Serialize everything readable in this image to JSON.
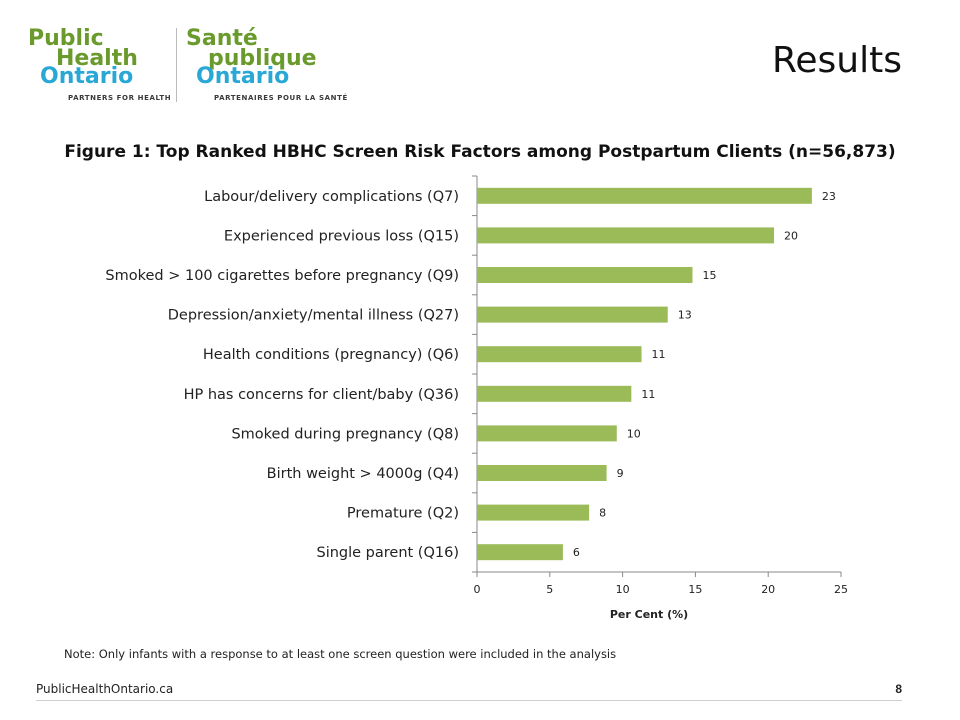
{
  "logo": {
    "en_line1": "Public",
    "en_line2": "Health",
    "en_line3": "Ontario",
    "en_tagline": "PARTNERS FOR HEALTH",
    "fr_line1": "Santé",
    "fr_line2": "publique",
    "fr_line3": "Ontario",
    "fr_tagline": "PARTENAIRES POUR LA SANTÉ",
    "green": "#6a9a2c",
    "blue": "#29a8d6"
  },
  "slide_title": "Results",
  "footer": {
    "site": "PublicHealthOntario.ca",
    "page": "8"
  },
  "note": "Note:  Only infants with a response to at least one screen question were included in the analysis",
  "chart_data": {
    "type": "bar",
    "orientation": "horizontal",
    "title": "Figure  1: Top Ranked HBHC Screen Risk Factors among Postpartum  Clients (n=56,873)",
    "xlabel": "Per Cent (%)",
    "ylabel": "",
    "categories": [
      "Labour/delivery complications (Q7)",
      "Experienced previous loss (Q15)",
      "Smoked > 100 cigarettes before pregnancy (Q9)",
      "Depression/anxiety/mental illness (Q27)",
      "Health conditions (pregnancy) (Q6)",
      "HP has concerns for client/baby (Q36)",
      "Smoked during pregnancy (Q8)",
      "Birth weight > 4000g (Q4)",
      "Premature (Q2)",
      "Single parent (Q16)"
    ],
    "values": [
      23,
      20.4,
      14.8,
      13.1,
      11.3,
      10.6,
      9.6,
      8.9,
      7.7,
      5.9
    ],
    "value_labels": [
      "23",
      "20",
      "15",
      "13",
      "11",
      "11",
      "10",
      "9",
      "8",
      "6"
    ],
    "xlim": [
      0,
      25
    ],
    "xticks": [
      "0",
      "5",
      "10",
      "15",
      "20",
      "25"
    ],
    "bar_color": "#9bbb59",
    "grid": false,
    "legend": "none"
  }
}
